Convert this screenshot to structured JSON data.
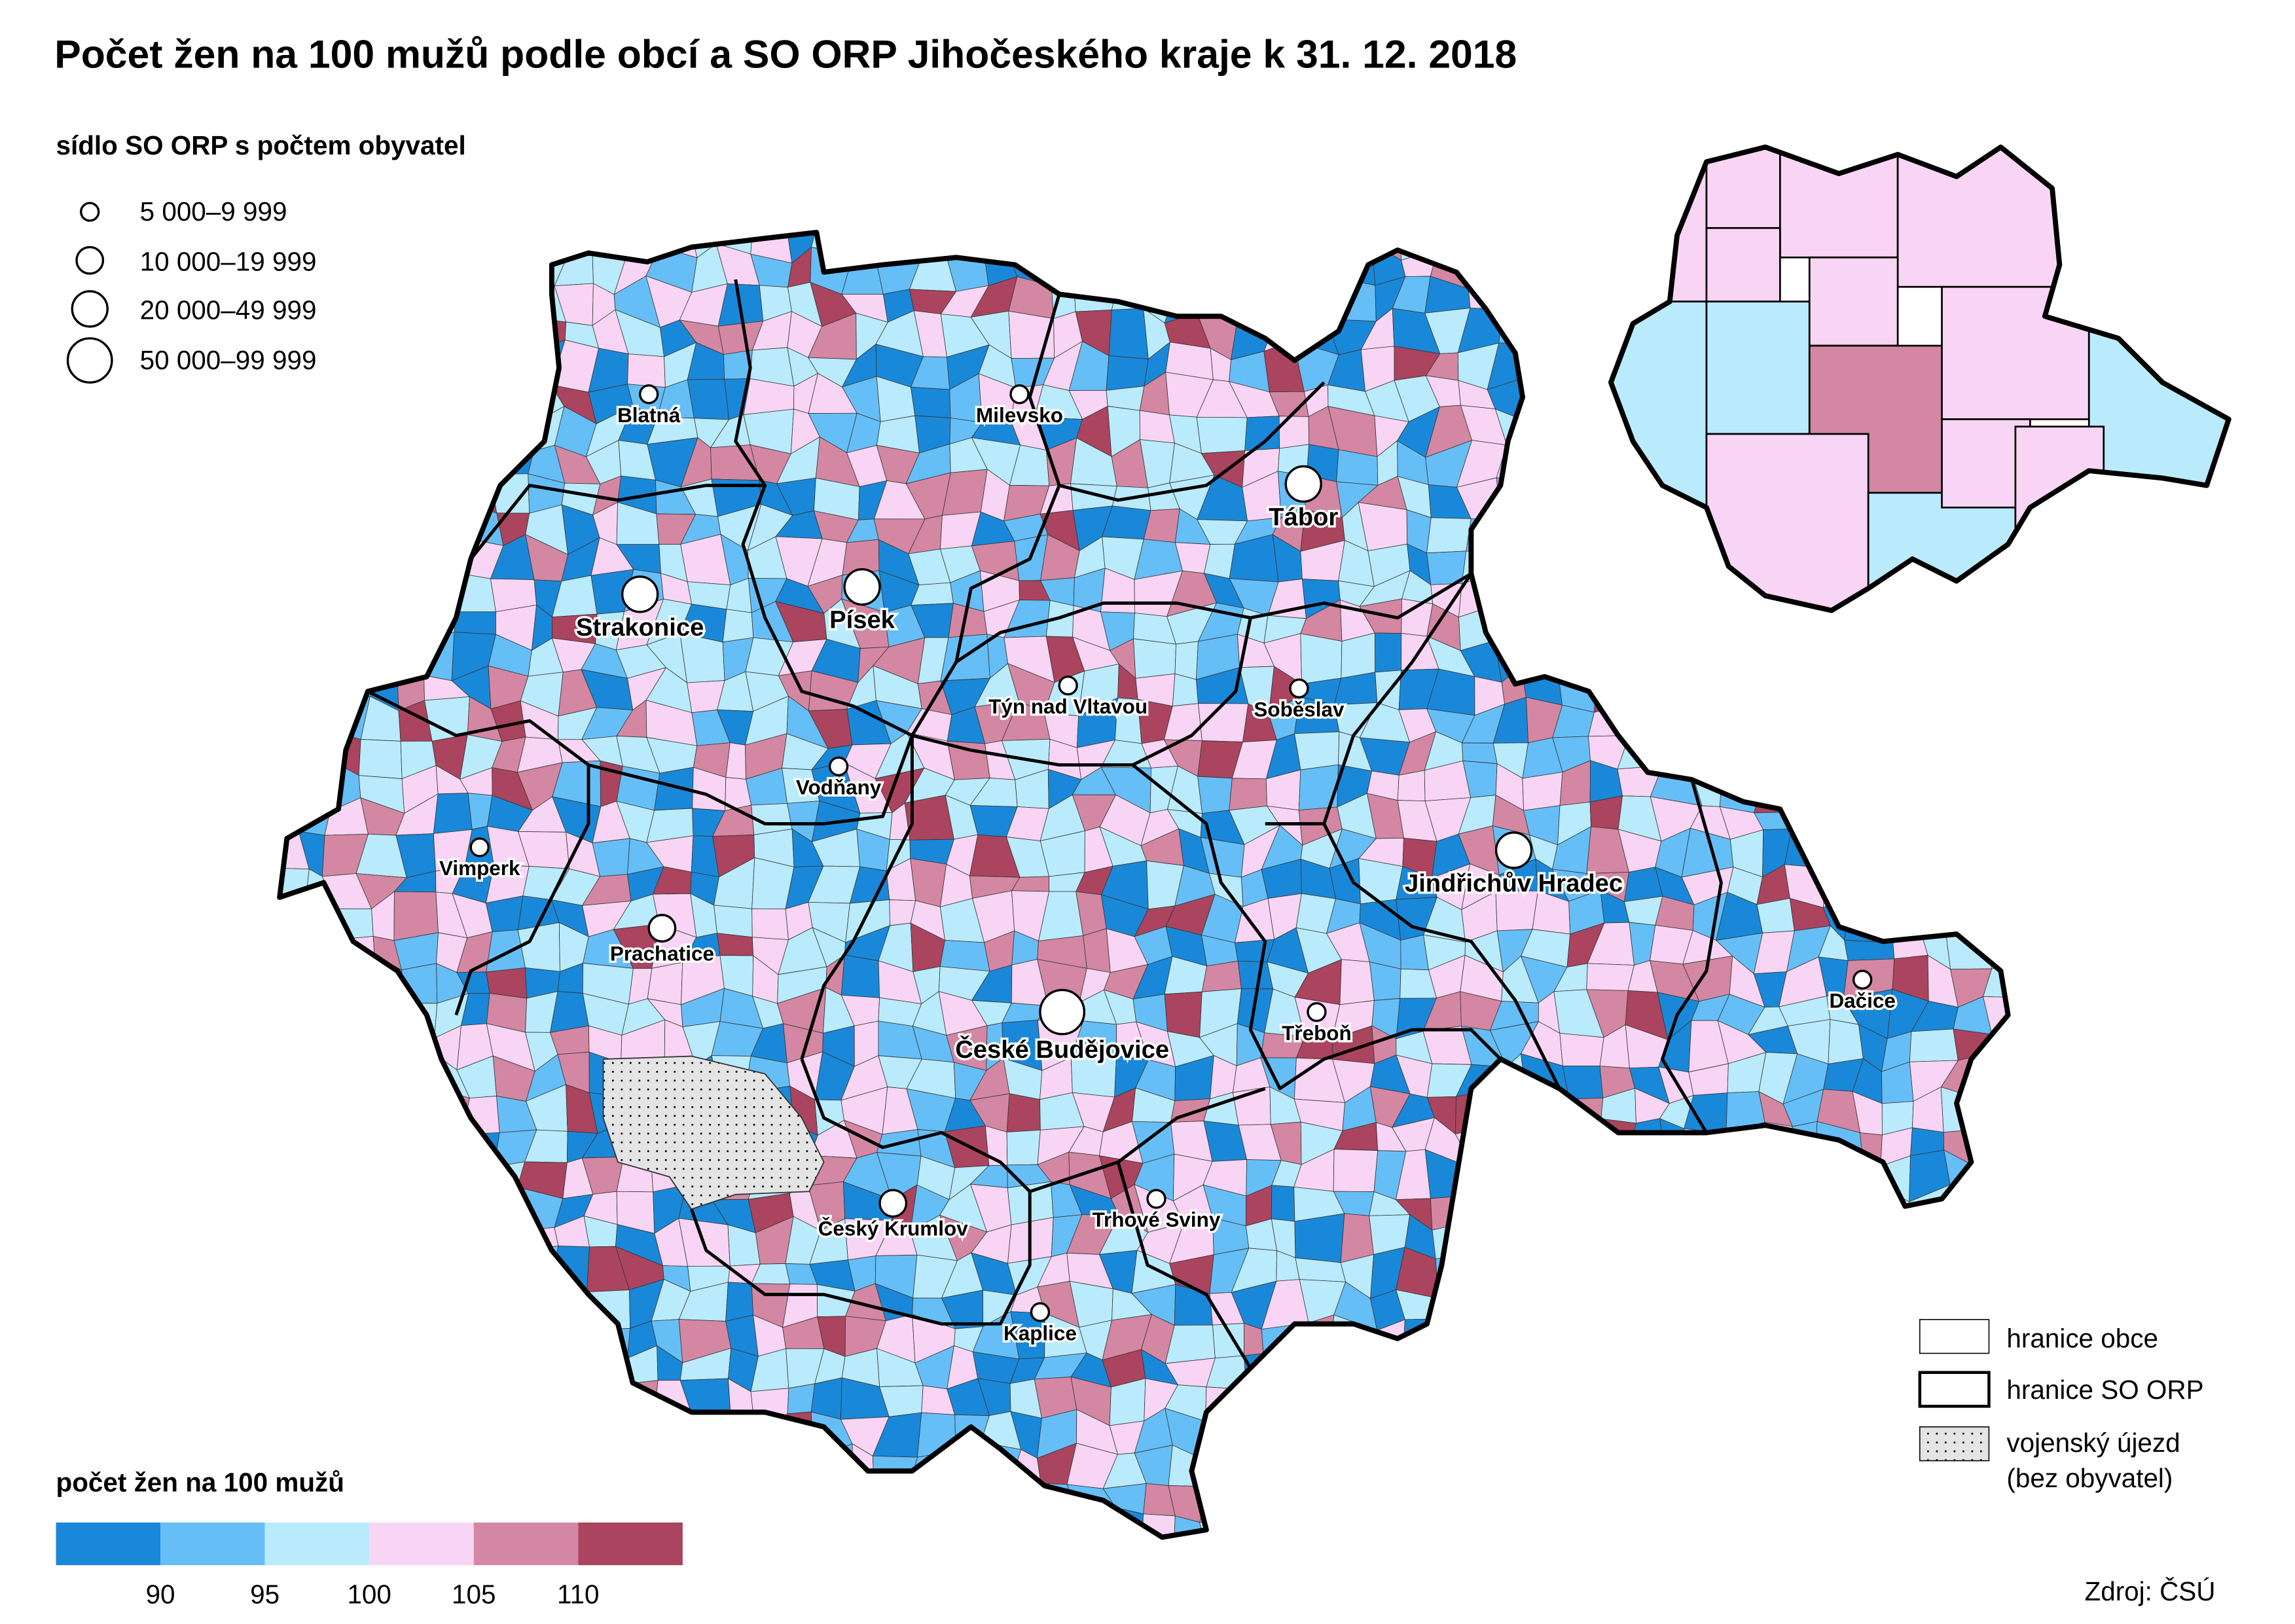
{
  "title": "Počet žen na 100 mužů podle obcí a SO ORP Jihočeského kraje k 31. 12. 2018",
  "size_legend": {
    "heading": "sídlo SO ORP s počtem obyvatel",
    "items": [
      "5 000–9 999",
      "10 000–19 999",
      "20 000–49 999",
      "50 000–99 999"
    ]
  },
  "color_legend": {
    "heading": "počet žen na 100 mužů",
    "colors": [
      "#1a88d8",
      "#66bef7",
      "#b9ebfd",
      "#f8d5f4",
      "#d387a2",
      "#ab445e"
    ],
    "breaks": [
      "90",
      "95",
      "100",
      "105",
      "110"
    ]
  },
  "boundary_legend": {
    "municipality": "hranice obce",
    "orp": "hranice SO ORP",
    "military_line1": "vojenský újezd",
    "military_line2": "(bez obyvatel)"
  },
  "source": "Zdroj: ČSÚ",
  "cities": [
    {
      "name": "Blatná",
      "size": 0
    },
    {
      "name": "Milevsko",
      "size": 0
    },
    {
      "name": "Tábor",
      "size": 2
    },
    {
      "name": "Písek",
      "size": 2
    },
    {
      "name": "Strakonice",
      "size": 2
    },
    {
      "name": "Týn nad Vltavou",
      "size": 0
    },
    {
      "name": "Soběslav",
      "size": 0
    },
    {
      "name": "Vodňany",
      "size": 0
    },
    {
      "name": "Vimperk",
      "size": 0
    },
    {
      "name": "Jindřichův Hradec",
      "size": 2
    },
    {
      "name": "Prachatice",
      "size": 1
    },
    {
      "name": "České Budějovice",
      "size": 3
    },
    {
      "name": "Třeboň",
      "size": 0
    },
    {
      "name": "Dačice",
      "size": 0
    },
    {
      "name": "Český Krumlov",
      "size": 1
    },
    {
      "name": "Trhové Sviny",
      "size": 0
    },
    {
      "name": "Kaplice",
      "size": 0
    }
  ]
}
